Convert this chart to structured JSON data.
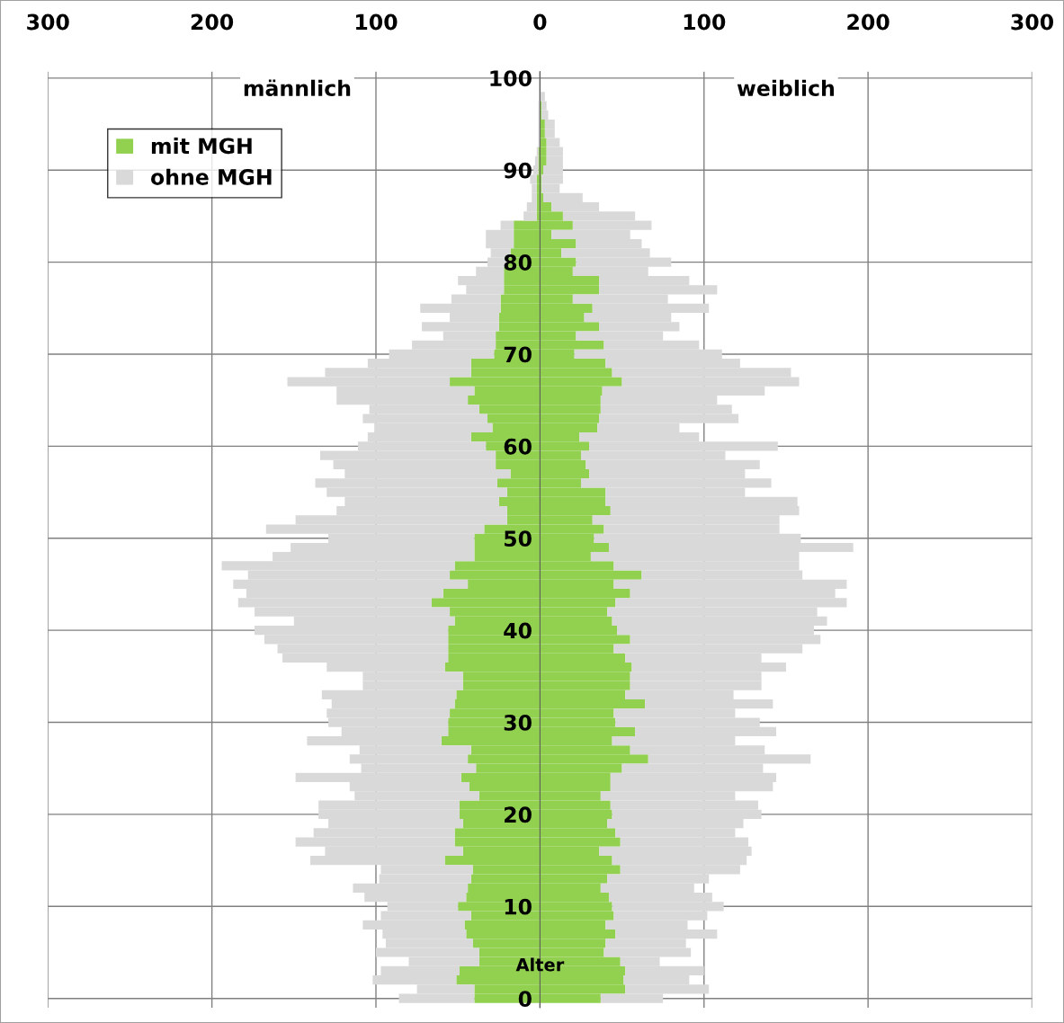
{
  "chart_data": {
    "type": "bar",
    "orientation": "horizontal",
    "stacked": true,
    "categories": [
      "100",
      null,
      null,
      null,
      null,
      null,
      null,
      null,
      null,
      null,
      "90",
      null,
      null,
      null,
      null,
      null,
      null,
      null,
      null,
      null,
      "80",
      null,
      null,
      null,
      null,
      null,
      null,
      null,
      null,
      null,
      "70",
      null,
      null,
      null,
      null,
      null,
      null,
      null,
      null,
      null,
      "60",
      null,
      null,
      null,
      null,
      null,
      null,
      null,
      null,
      null,
      "50",
      null,
      null,
      null,
      null,
      null,
      null,
      null,
      null,
      null,
      "40",
      null,
      null,
      null,
      null,
      null,
      null,
      null,
      null,
      null,
      "30",
      null,
      null,
      null,
      null,
      null,
      null,
      null,
      null,
      null,
      "20",
      null,
      null,
      null,
      null,
      null,
      null,
      null,
      null,
      null,
      "10",
      null,
      null,
      null,
      null,
      null,
      null,
      null,
      null,
      null,
      "0"
    ],
    "series": [
      {
        "name": "mit MGH",
        "color": "#92d050",
        "values": [
          0,
          0,
          0,
          0,
          0,
          0,
          0,
          0,
          -1,
          -1,
          -1,
          -2,
          -2,
          -2,
          -2,
          -2,
          -16,
          -16,
          -16,
          -18,
          -20,
          -22,
          -22,
          -22,
          -24,
          -24,
          -25,
          -25,
          -27,
          -27,
          -28,
          -42,
          -42,
          -55,
          -40,
          -44,
          -37,
          -32,
          -29,
          -42,
          -33,
          -27,
          -27,
          -18,
          -26,
          -20,
          -25,
          -20,
          -20,
          -34,
          -40,
          -40,
          -40,
          -52,
          -55,
          -44,
          -59,
          -66,
          -55,
          -52,
          -56,
          -56,
          -56,
          -56,
          -58,
          -47,
          -47,
          -51,
          -52,
          -55,
          -56,
          -56,
          -60,
          -42,
          -44,
          -39,
          -48,
          -43,
          -37,
          -49,
          -49,
          -47,
          -52,
          -52,
          -47,
          -58,
          -41,
          -42,
          -44,
          -45,
          -50,
          -42,
          -46,
          -45,
          -41,
          -37,
          -37,
          -49,
          -51,
          -40,
          -40
        ]
      },
      {
        "name": "ohne MGH",
        "color": "#d9d9d9",
        "values": [
          0,
          0,
          0,
          -1,
          -1,
          -1,
          -1,
          -1,
          -1,
          -2,
          -3,
          -4,
          -3,
          -3,
          -6,
          -8,
          -8,
          -17,
          -17,
          -12,
          -12,
          -17,
          -28,
          -23,
          -30,
          -49,
          -30,
          -47,
          -32,
          -51,
          -64,
          -63,
          -89,
          -99,
          -84,
          -80,
          -67,
          -76,
          -72,
          -63,
          -78,
          -107,
          -99,
          -101,
          -111,
          -110,
          -94,
          -104,
          -129,
          -133,
          -89,
          -112,
          -123,
          -142,
          -123,
          -143,
          -120,
          -118,
          -119,
          -98,
          -118,
          -112,
          -104,
          -101,
          -72,
          -61,
          -61,
          -82,
          -75,
          -75,
          -73,
          -65,
          -82,
          -68,
          -72,
          -70,
          -101,
          -73,
          -76,
          -86,
          -86,
          -82,
          -86,
          -97,
          -84,
          -82,
          -56,
          -56,
          -70,
          -62,
          -43,
          -55,
          -62,
          -51,
          -53,
          -63,
          -43,
          -48,
          -51,
          -35,
          -46
        ]
      },
      {
        "color": "#92d050",
        "values": [
          0,
          0,
          0,
          1,
          1,
          3,
          3,
          4,
          4,
          4,
          2,
          1,
          1,
          2,
          7,
          14,
          20,
          7,
          22,
          13,
          22,
          20,
          36,
          36,
          20,
          32,
          27,
          36,
          22,
          39,
          21,
          40,
          44,
          50,
          38,
          37,
          37,
          36,
          35,
          24,
          30,
          25,
          28,
          30,
          25,
          40,
          40,
          43,
          32,
          39,
          33,
          42,
          31,
          45,
          62,
          45,
          55,
          46,
          41,
          44,
          47,
          55,
          45,
          52,
          56,
          55,
          55,
          52,
          64,
          45,
          46,
          58,
          44,
          55,
          66,
          50,
          43,
          43,
          37,
          43,
          44,
          41,
          46,
          49,
          36,
          44,
          49,
          41,
          37,
          42,
          44,
          45,
          40,
          46,
          40,
          39,
          49,
          52,
          51,
          52,
          37
        ]
      },
      {
        "color": "#d9d9d9",
        "values": [
          0,
          0,
          3,
          3,
          4,
          6,
          6,
          8,
          10,
          10,
          12,
          13,
          11,
          24,
          29,
          44,
          48,
          48,
          40,
          54,
          58,
          46,
          55,
          72,
          58,
          71,
          53,
          49,
          53,
          58,
          90,
          82,
          109,
          108,
          99,
          71,
          80,
          85,
          50,
          73,
          115,
          88,
          106,
          95,
          116,
          85,
          117,
          115,
          114,
          107,
          126,
          149,
          127,
          113,
          98,
          142,
          125,
          141,
          128,
          131,
          120,
          116,
          115,
          83,
          94,
          80,
          80,
          66,
          78,
          74,
          88,
          86,
          75,
          82,
          99,
          86,
          101,
          99,
          82,
          90,
          91,
          83,
          73,
          78,
          93,
          82,
          73,
          62,
          57,
          63,
          68,
          57,
          50,
          62,
          49,
          53,
          24,
          48,
          40,
          51,
          38
        ]
      }
    ],
    "xlim": [
      -300,
      300
    ],
    "xticks": [
      {
        "value": -300,
        "label": "300"
      },
      {
        "value": -200,
        "label": "200"
      },
      {
        "value": -100,
        "label": "100"
      },
      0,
      100,
      200,
      300
    ],
    "grid": true,
    "legend": "top left",
    "annotations": [
      "männlich",
      "weiblich",
      "Alter"
    ]
  }
}
